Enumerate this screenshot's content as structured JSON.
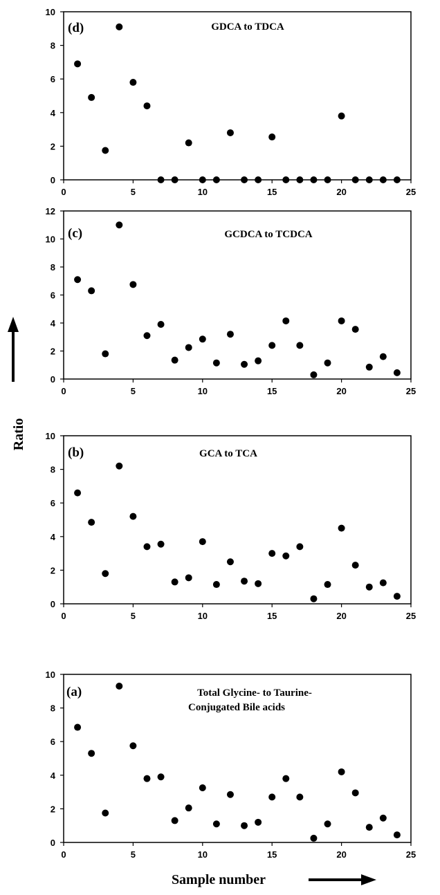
{
  "figure": {
    "ylabel": "Ratio",
    "xlabel": "Sample number"
  },
  "chart_data": [
    {
      "type": "scatter",
      "panel_label": "(d)",
      "title": "GDCA to TDCA",
      "xlim": [
        0,
        25
      ],
      "ylim": [
        0,
        10
      ],
      "xticks": [
        0,
        5,
        10,
        15,
        20,
        25
      ],
      "yticks": [
        0,
        2,
        4,
        6,
        8,
        10
      ],
      "grid": false,
      "x": [
        1,
        2,
        3,
        4,
        5,
        6,
        7,
        8,
        9,
        10,
        11,
        12,
        13,
        14,
        15,
        16,
        17,
        18,
        19,
        20,
        21,
        22,
        23,
        24
      ],
      "y": [
        6.9,
        4.9,
        1.75,
        9.1,
        5.8,
        4.4,
        0,
        0,
        2.2,
        0,
        0,
        2.8,
        0,
        0,
        2.55,
        0,
        0,
        0,
        0,
        3.8,
        0,
        0,
        0,
        0
      ]
    },
    {
      "type": "scatter",
      "panel_label": "(c)",
      "title": "GCDCA to TCDCA",
      "xlim": [
        0,
        25
      ],
      "ylim": [
        0,
        12
      ],
      "xticks": [
        0,
        5,
        10,
        15,
        20,
        25
      ],
      "yticks": [
        0,
        2,
        4,
        6,
        8,
        10,
        12
      ],
      "grid": false,
      "x": [
        1,
        2,
        3,
        4,
        5,
        6,
        7,
        8,
        9,
        10,
        11,
        12,
        13,
        14,
        15,
        16,
        17,
        18,
        19,
        20,
        21,
        22,
        23,
        24
      ],
      "y": [
        7.1,
        6.3,
        1.8,
        11.0,
        6.75,
        3.1,
        3.9,
        1.35,
        2.25,
        2.85,
        1.15,
        3.2,
        1.05,
        1.3,
        2.4,
        4.15,
        2.4,
        0.3,
        1.15,
        4.15,
        3.55,
        0.85,
        1.6,
        0.45
      ]
    },
    {
      "type": "scatter",
      "panel_label": "(b)",
      "title": "GCA to TCA",
      "xlim": [
        0,
        25
      ],
      "ylim": [
        0,
        10
      ],
      "xticks": [
        0,
        5,
        10,
        15,
        20,
        25
      ],
      "yticks": [
        0,
        2,
        4,
        6,
        8,
        10
      ],
      "grid": false,
      "x": [
        1,
        2,
        3,
        4,
        5,
        6,
        7,
        8,
        9,
        10,
        11,
        12,
        13,
        14,
        15,
        16,
        17,
        18,
        19,
        20,
        21,
        22,
        23,
        24
      ],
      "y": [
        6.6,
        4.85,
        1.8,
        8.2,
        5.2,
        3.4,
        3.55,
        1.3,
        1.55,
        3.7,
        1.15,
        2.5,
        1.35,
        1.2,
        3.0,
        2.85,
        3.4,
        0.3,
        1.15,
        4.5,
        2.3,
        1.0,
        1.25,
        0.45
      ]
    },
    {
      "type": "scatter",
      "panel_label": "(a)",
      "title": "Total Glycine- to Taurine-\nConjugated Bile acids",
      "title_lines": [
        "Total Glycine- to Taurine-",
        "Conjugated Bile acids"
      ],
      "xlim": [
        0,
        25
      ],
      "ylim": [
        0,
        10
      ],
      "xticks": [
        0,
        5,
        10,
        15,
        20,
        25
      ],
      "yticks": [
        0,
        2,
        4,
        6,
        8,
        10
      ],
      "grid": false,
      "x": [
        1,
        2,
        3,
        4,
        5,
        6,
        7,
        8,
        9,
        10,
        11,
        12,
        13,
        14,
        15,
        16,
        17,
        18,
        19,
        20,
        21,
        22,
        23,
        24
      ],
      "y": [
        6.85,
        5.3,
        1.75,
        9.3,
        5.75,
        3.8,
        3.9,
        1.3,
        2.05,
        3.25,
        1.1,
        2.85,
        1.0,
        1.2,
        2.7,
        3.8,
        2.7,
        0.25,
        1.1,
        4.2,
        2.95,
        0.9,
        1.45,
        0.45
      ]
    }
  ]
}
